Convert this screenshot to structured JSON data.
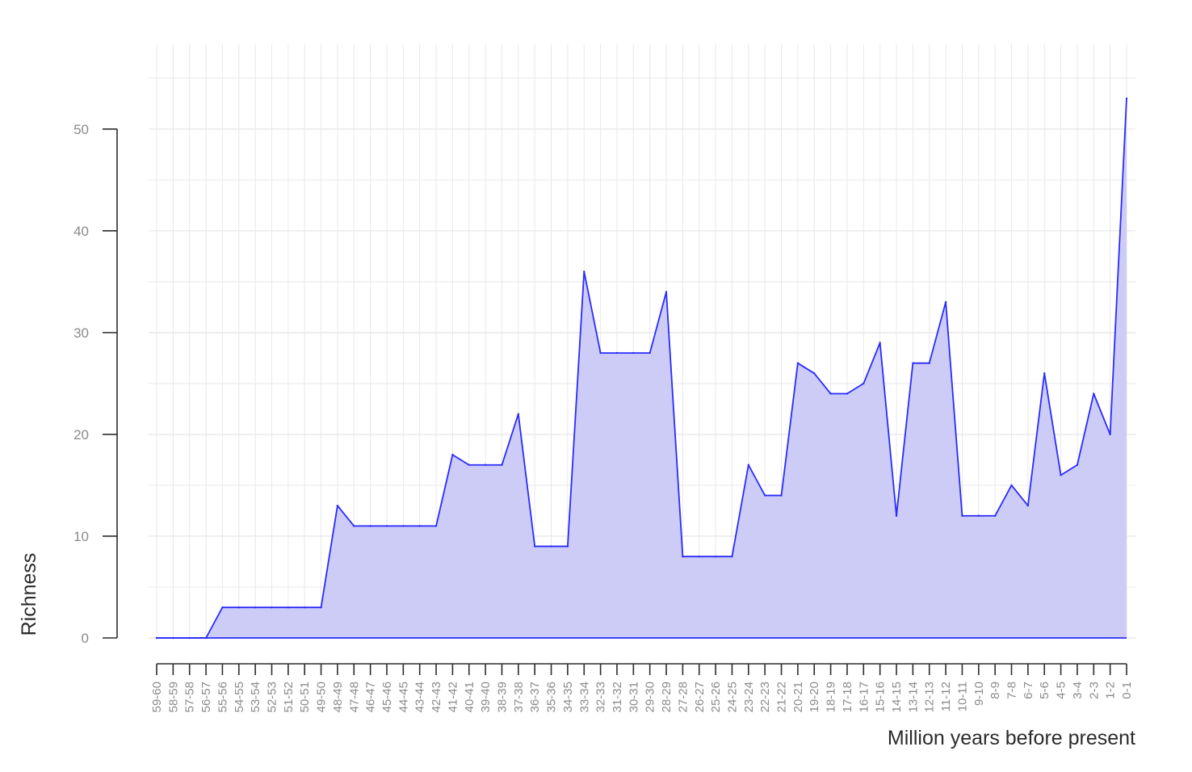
{
  "chart_data": {
    "type": "area",
    "title": "",
    "xlabel": "Million years before present",
    "ylabel": "Richness",
    "ylim": [
      0,
      53
    ],
    "yticks": [
      0,
      10,
      20,
      30,
      40,
      50
    ],
    "grid": true,
    "legend": "none",
    "colors": {
      "line": "#2a2aff",
      "fill": "#c9c9f7",
      "grid": "#e8e8e8",
      "axis": "#2b2b2b"
    },
    "categories": [
      "59-60",
      "58-59",
      "57-58",
      "56-57",
      "55-56",
      "54-55",
      "53-54",
      "52-53",
      "51-52",
      "50-51",
      "49-50",
      "48-49",
      "47-48",
      "46-47",
      "45-46",
      "44-45",
      "43-44",
      "42-43",
      "41-42",
      "40-41",
      "39-40",
      "38-39",
      "37-38",
      "36-37",
      "35-36",
      "34-35",
      "33-34",
      "32-33",
      "31-32",
      "30-31",
      "29-30",
      "28-29",
      "27-28",
      "26-27",
      "25-26",
      "24-25",
      "23-24",
      "22-23",
      "21-22",
      "20-21",
      "19-20",
      "18-19",
      "17-18",
      "16-17",
      "15-16",
      "14-15",
      "13-14",
      "12-13",
      "11-12",
      "10-11",
      "9-10",
      "8-9",
      "7-8",
      "6-7",
      "5-6",
      "4-5",
      "3-4",
      "2-3",
      "1-2",
      "0-1"
    ],
    "series": [
      {
        "values": [
          0,
          0,
          0,
          0,
          3,
          3,
          3,
          3,
          3,
          3,
          3,
          13,
          11,
          11,
          11,
          11,
          11,
          11,
          18,
          17,
          17,
          17,
          22,
          9,
          9,
          9,
          36,
          28,
          28,
          28,
          28,
          34,
          8,
          8,
          8,
          8,
          17,
          14,
          14,
          27,
          26,
          24,
          24,
          25,
          29,
          12,
          27,
          27,
          33,
          12,
          12,
          12,
          15,
          13,
          26,
          16,
          17,
          24,
          20,
          53
        ]
      }
    ]
  }
}
